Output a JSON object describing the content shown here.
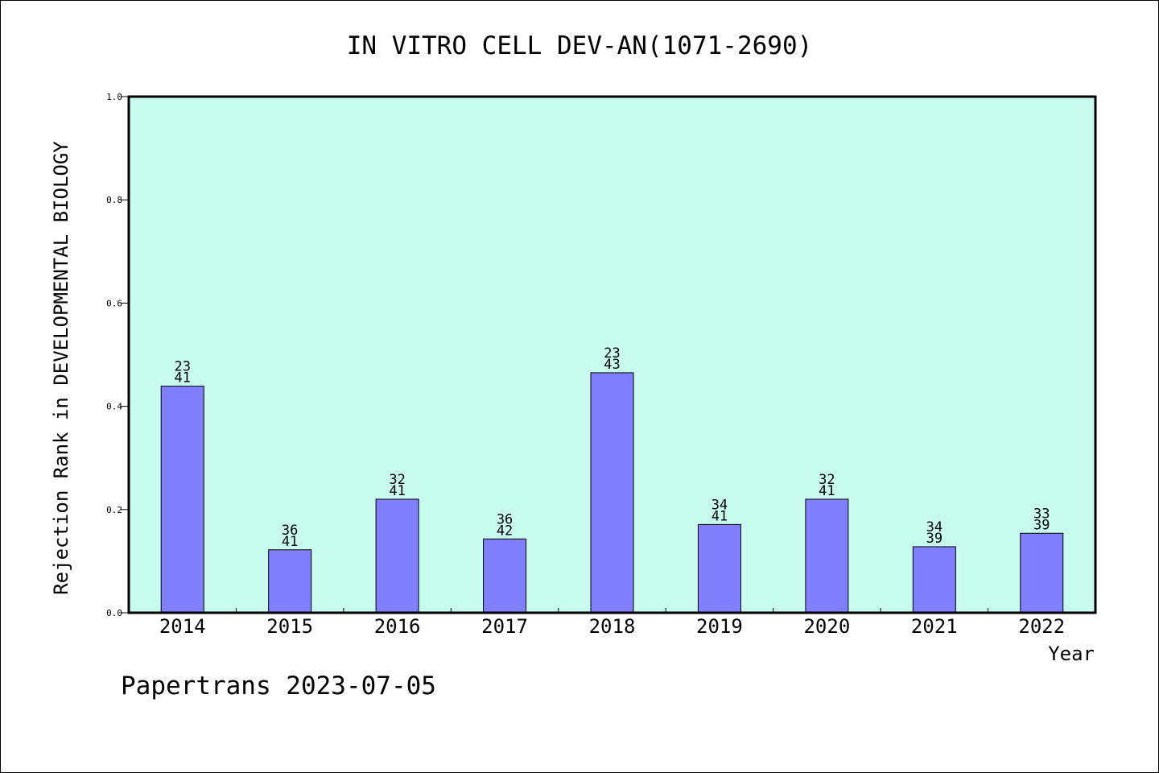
{
  "chart_data": {
    "type": "bar",
    "title": "IN VITRO CELL DEV-AN(1071-2690)",
    "xlabel": "Year",
    "ylabel": "Rejection Rank in DEVELOPMENTAL BIOLOGY",
    "ylim": [
      0,
      1.0
    ],
    "yticks": [
      {
        "value": 0.0,
        "label": "0.0"
      },
      {
        "value": 0.2,
        "label": "0.2"
      },
      {
        "value": 0.4,
        "label": "0.4"
      },
      {
        "value": 0.6,
        "label": "0.6"
      },
      {
        "value": 0.8,
        "label": "0.8"
      },
      {
        "value": 1.0,
        "label": "1.0"
      }
    ],
    "categories": [
      "2014",
      "2015",
      "2016",
      "2017",
      "2018",
      "2019",
      "2020",
      "2021",
      "2022"
    ],
    "values": [
      0.439,
      0.122,
      0.22,
      0.143,
      0.465,
      0.171,
      0.22,
      0.128,
      0.154
    ],
    "labels": [
      {
        "top": "23",
        "bottom": "41"
      },
      {
        "top": "36",
        "bottom": "41"
      },
      {
        "top": "32",
        "bottom": "41"
      },
      {
        "top": "36",
        "bottom": "42"
      },
      {
        "top": "23",
        "bottom": "43"
      },
      {
        "top": "34",
        "bottom": "41"
      },
      {
        "top": "32",
        "bottom": "41"
      },
      {
        "top": "34",
        "bottom": "39"
      },
      {
        "top": "33",
        "bottom": "39"
      }
    ],
    "grid": false,
    "colors": {
      "plot_background": "#c8fcee",
      "bar_fill": "#8080ff",
      "bar_stroke": "#000000"
    }
  },
  "footer": {
    "watermark": "Papertrans 2023-07-05"
  }
}
